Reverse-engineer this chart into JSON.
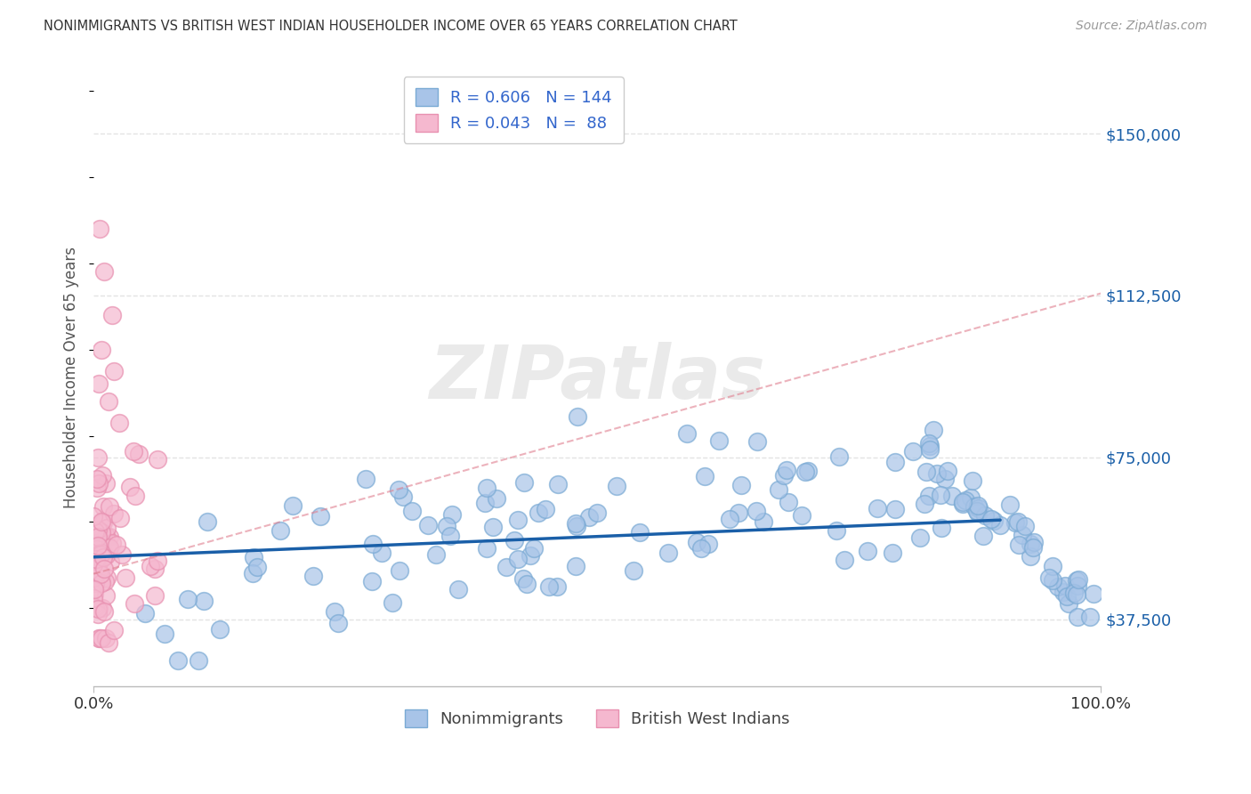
{
  "title": "NONIMMIGRANTS VS BRITISH WEST INDIAN HOUSEHOLDER INCOME OVER 65 YEARS CORRELATION CHART",
  "source": "Source: ZipAtlas.com",
  "ylabel": "Householder Income Over 65 years",
  "xlim": [
    0,
    1
  ],
  "ylim": [
    22000,
    165000
  ],
  "yticks": [
    37500,
    75000,
    112500,
    150000
  ],
  "ytick_labels": [
    "$37,500",
    "$75,000",
    "$112,500",
    "$150,000"
  ],
  "xtick_labels": [
    "0.0%",
    "100.0%"
  ],
  "nonimmigrant_R": 0.606,
  "nonimmigrant_N": 144,
  "bwi_R": 0.043,
  "bwi_N": 88,
  "nonimmigrant_color": "#a8c4e8",
  "nonimmigrant_edge_color": "#7aaad4",
  "nonimmigrant_line_color": "#1a5fa8",
  "bwi_color": "#f5b8cf",
  "bwi_edge_color": "#e890b0",
  "bwi_line_color": "#e08090",
  "legend_text_color": "#3366cc",
  "title_color": "#333333",
  "watermark": "ZIPatlas",
  "background_color": "#ffffff",
  "grid_color": "#dddddd"
}
